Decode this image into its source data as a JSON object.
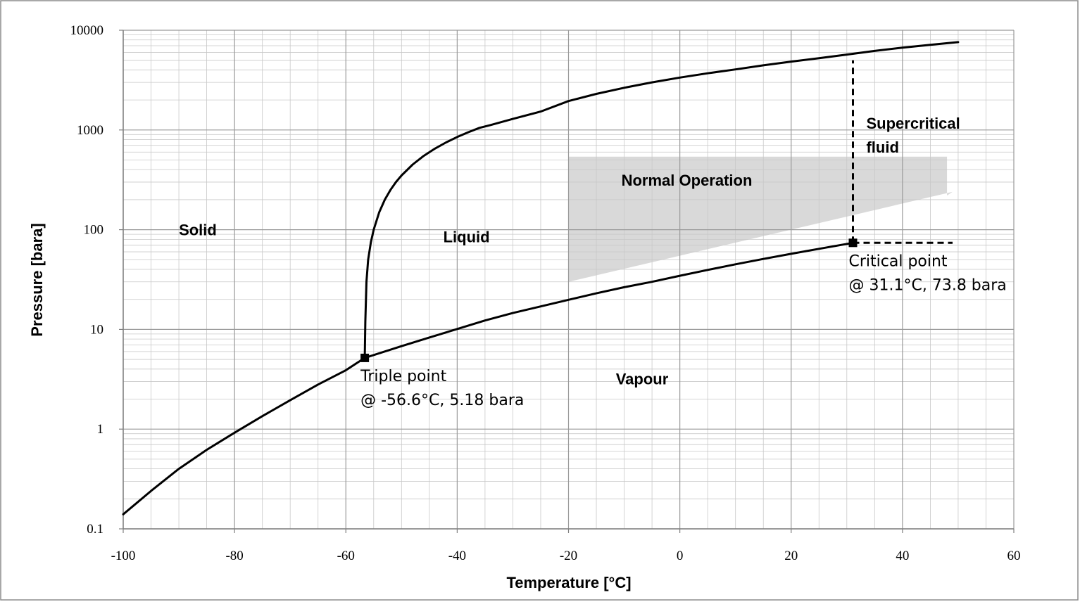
{
  "chart_data": {
    "type": "line",
    "title": "",
    "xlabel": "Temperature [°C]",
    "ylabel": "Pressure [bara]",
    "xlim": [
      -100,
      60
    ],
    "ylim": [
      0.1,
      10000
    ],
    "yscale": "log",
    "grid": true,
    "x_ticks": [
      -100,
      -80,
      -60,
      -40,
      -20,
      0,
      20,
      40,
      60
    ],
    "x_tick_labels": [
      "-100",
      "-80",
      "-60",
      "-40",
      "-20",
      "0",
      "20",
      "40",
      "60"
    ],
    "y_ticks": [
      0.1,
      1,
      10,
      100,
      1000,
      10000
    ],
    "y_tick_labels": [
      "0.1",
      "1",
      "10",
      "100",
      "1000",
      "10000"
    ],
    "series": [
      {
        "id": "sublimation-vapour-line",
        "x": [
          -100,
          -95,
          -90,
          -85,
          -80,
          -75,
          -70,
          -65,
          -60,
          -56.6,
          -50,
          -45,
          -40,
          -35,
          -30,
          -25,
          -20,
          -15,
          -10,
          -5,
          0,
          5,
          10,
          15,
          20,
          25,
          31.1
        ],
        "y": [
          0.14,
          0.24,
          0.4,
          0.62,
          0.92,
          1.35,
          1.95,
          2.8,
          3.9,
          5.18,
          6.8,
          8.3,
          10.1,
          12.3,
          14.6,
          17.0,
          19.8,
          23.0,
          26.5,
          30.0,
          34.5,
          39.5,
          45.0,
          50.9,
          57.3,
          64.3,
          73.8
        ]
      },
      {
        "id": "melting-line",
        "x": [
          -56.6,
          -56.5,
          -56.3,
          -56.0,
          -55.5,
          -55.0,
          -54.0,
          -53.0,
          -52.0,
          -51.0,
          -50.0,
          -48.0,
          -46.0,
          -44.0,
          -42.0,
          -40.0,
          -38.0,
          -36.0,
          -34.0,
          -30.0,
          -25.0,
          -20.0,
          -15.0,
          -10.0,
          -5.0,
          0.0,
          5.0,
          10.0,
          15.0,
          20.0,
          25.0,
          30.0,
          35.0,
          40.0,
          45.0,
          50.0
        ],
        "y": [
          5.18,
          12,
          30,
          50,
          75,
          100,
          150,
          200,
          250,
          300,
          350,
          450,
          550,
          650,
          750,
          850,
          950,
          1050,
          1120,
          1290,
          1530,
          1950,
          2300,
          2650,
          3000,
          3350,
          3700,
          4050,
          4450,
          4850,
          5250,
          5700,
          6200,
          6700,
          7150,
          7600
        ]
      }
    ],
    "shaded_region": {
      "label": "Normal Operation",
      "x": [
        -20,
        48,
        48,
        49,
        -20
      ],
      "y": [
        540,
        540,
        220,
        240,
        30
      ]
    },
    "points": [
      {
        "name": "triple-point",
        "x": -56.6,
        "y": 5.18,
        "label_lines": [
          "Triple point",
          "@ -56.6°C, 5.18 bara"
        ]
      },
      {
        "name": "critical-point",
        "x": 31.1,
        "y": 73.8,
        "label_lines": [
          "Critical point",
          "@ 31.1°C, 73.8 bara"
        ]
      }
    ],
    "region_labels": [
      {
        "name": "solid",
        "text": "Solid",
        "x": -90,
        "y": 100
      },
      {
        "name": "liquid",
        "text": "Liquid",
        "x": -42.5,
        "y": 85
      },
      {
        "name": "vapour",
        "text": "Vapour",
        "x": -11.5,
        "y": 3.2
      }
    ],
    "supercritical_label": [
      "Supercritical",
      "fluid"
    ],
    "dashed_boundaries": [
      {
        "name": "critical-pressure-line",
        "x": [
          31.1,
          49
        ],
        "y": [
          73.8,
          73.8
        ]
      },
      {
        "name": "critical-temperature-line",
        "x": [
          31.1,
          31.1
        ],
        "y": [
          73.8,
          5000
        ]
      }
    ],
    "colors": {
      "line": "#000000",
      "shade": "#d9d9d9",
      "grid": "#9a9a9a",
      "minor_grid": "#c8c8c8",
      "frame": "#8c8c8c"
    }
  }
}
